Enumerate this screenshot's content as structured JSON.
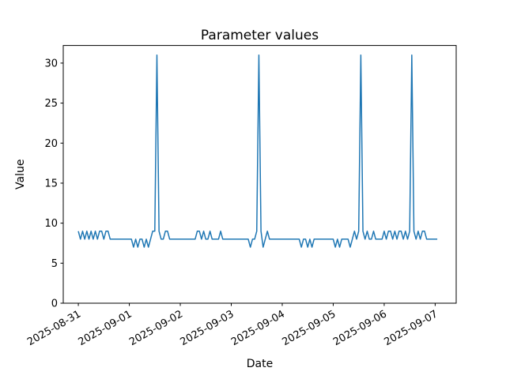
{
  "figure": {
    "background": "#ffffff",
    "frame_color": "#000000"
  },
  "chart_data": {
    "type": "line",
    "title": "Parameter values",
    "xlabel": "Date",
    "ylabel": "Value",
    "line_color": "#1f77b4",
    "background": "#ffffff",
    "grid": false,
    "legend": "none",
    "x_tick_labels": [
      "2025-08-31",
      "2025-09-01",
      "2025-09-02",
      "2025-09-03",
      "2025-09-04",
      "2025-09-05",
      "2025-09-06",
      "2025-09-07"
    ],
    "x_tick_hours": [
      0,
      24,
      48,
      72,
      96,
      120,
      144,
      168
    ],
    "y_ticks": [
      0,
      5,
      10,
      15,
      20,
      25,
      30
    ],
    "ylim": [
      0,
      32.2
    ],
    "xlim_hours": [
      -7.1,
      177.9
    ],
    "x_start": "2025-08-31 00:00",
    "x_step_hours": 1,
    "x_unit": "hours since 2025-08-31 00:00",
    "baseline_value": 8,
    "spike_value": 31,
    "spike_times": [
      "2025-09-01 13:00",
      "2025-09-03 13:00",
      "2025-09-05 13:00",
      "2025-09-06 13:00"
    ],
    "values": [
      9,
      8,
      9,
      8,
      9,
      8,
      9,
      8,
      9,
      8,
      9,
      9,
      8,
      9,
      9,
      8,
      8,
      8,
      8,
      8,
      8,
      8,
      8,
      8,
      8,
      8,
      7,
      8,
      7,
      8,
      8,
      7,
      8,
      7,
      8,
      9,
      9,
      31,
      9,
      8,
      8,
      9,
      9,
      8,
      8,
      8,
      8,
      8,
      8,
      8,
      8,
      8,
      8,
      8,
      8,
      8,
      9,
      9,
      8,
      9,
      8,
      8,
      9,
      8,
      8,
      8,
      8,
      9,
      8,
      8,
      8,
      8,
      8,
      8,
      8,
      8,
      8,
      8,
      8,
      8,
      8,
      7,
      8,
      8,
      9,
      31,
      9,
      7,
      8,
      9,
      8,
      8,
      8,
      8,
      8,
      8,
      8,
      8,
      8,
      8,
      8,
      8,
      8,
      8,
      8,
      7,
      8,
      8,
      7,
      8,
      7,
      8,
      8,
      8,
      8,
      8,
      8,
      8,
      8,
      8,
      8,
      7,
      8,
      7,
      8,
      8,
      8,
      8,
      7,
      8,
      9,
      8,
      9,
      31,
      9,
      8,
      9,
      8,
      8,
      9,
      8,
      8,
      8,
      8,
      9,
      8,
      9,
      9,
      8,
      9,
      8,
      9,
      9,
      8,
      9,
      8,
      9,
      31,
      9,
      8,
      9,
      8,
      9,
      9,
      8,
      8,
      8,
      8,
      8,
      8
    ]
  }
}
